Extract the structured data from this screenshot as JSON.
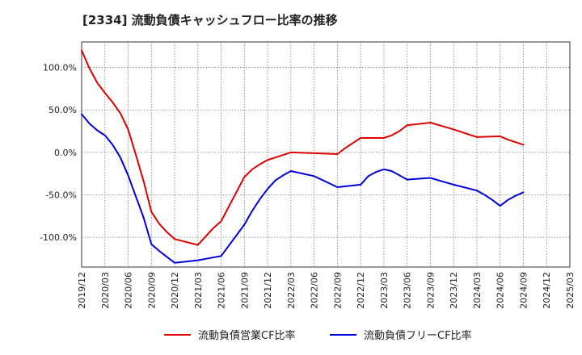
{
  "chart_data": {
    "type": "line",
    "title": "[2334]  流動負債キャッシュフロー比率の推移",
    "xlabel": "",
    "ylabel": "",
    "ylim": [
      -135,
      130
    ],
    "yticks": [
      100,
      50,
      0,
      -50,
      -100
    ],
    "ytick_labels": [
      "100.0%",
      "50.0%",
      "0.0%",
      "-50.0%",
      "-100.0%"
    ],
    "xticks": [
      "2019/12",
      "2020/03",
      "2020/06",
      "2020/09",
      "2020/12",
      "2021/03",
      "2021/06",
      "2021/09",
      "2021/12",
      "2022/03",
      "2022/06",
      "2022/09",
      "2022/12",
      "2023/03",
      "2023/06",
      "2023/09",
      "2023/12",
      "2024/03",
      "2024/06",
      "2024/09",
      "2024/12",
      "2025/03"
    ],
    "grid": true,
    "legend_position": "bottom",
    "series": [
      {
        "name": "流動負債営業CF比率",
        "color": "#e00000",
        "points": [
          [
            "2019/12",
            120
          ],
          [
            "2020/01",
            99
          ],
          [
            "2020/02",
            82
          ],
          [
            "2020/03",
            70
          ],
          [
            "2020/04",
            59
          ],
          [
            "2020/05",
            46
          ],
          [
            "2020/06",
            27
          ],
          [
            "2020/07",
            -3
          ],
          [
            "2020/08",
            -34
          ],
          [
            "2020/09",
            -70
          ],
          [
            "2020/10",
            -84
          ],
          [
            "2020/11",
            -94
          ],
          [
            "2020/12",
            -102
          ],
          [
            "2021/03",
            -109
          ],
          [
            "2021/04",
            -99
          ],
          [
            "2021/05",
            -89
          ],
          [
            "2021/06",
            -81
          ],
          [
            "2021/09",
            -29
          ],
          [
            "2021/10",
            -20
          ],
          [
            "2021/11",
            -14
          ],
          [
            "2021/12",
            -9
          ],
          [
            "2022/03",
            0
          ],
          [
            "2022/06",
            -1
          ],
          [
            "2022/09",
            -2
          ],
          [
            "2022/10",
            5
          ],
          [
            "2022/12",
            17
          ],
          [
            "2023/03",
            17
          ],
          [
            "2023/04",
            20
          ],
          [
            "2023/05",
            25
          ],
          [
            "2023/06",
            32
          ],
          [
            "2023/09",
            35
          ],
          [
            "2023/12",
            27
          ],
          [
            "2024/03",
            18
          ],
          [
            "2024/06",
            19
          ],
          [
            "2024/07",
            15
          ],
          [
            "2024/08",
            12
          ],
          [
            "2024/09",
            9
          ]
        ]
      },
      {
        "name": "流動負債フリーCF比率",
        "color": "#0000dd",
        "points": [
          [
            "2019/12",
            45
          ],
          [
            "2020/01",
            34
          ],
          [
            "2020/02",
            26
          ],
          [
            "2020/03",
            20
          ],
          [
            "2020/04",
            9
          ],
          [
            "2020/05",
            -6
          ],
          [
            "2020/06",
            -27
          ],
          [
            "2020/07",
            -52
          ],
          [
            "2020/08",
            -77
          ],
          [
            "2020/09",
            -108
          ],
          [
            "2020/10",
            -116
          ],
          [
            "2020/11",
            -123
          ],
          [
            "2020/12",
            -130
          ],
          [
            "2021/03",
            -127
          ],
          [
            "2021/06",
            -122
          ],
          [
            "2021/09",
            -85
          ],
          [
            "2021/10",
            -69
          ],
          [
            "2021/11",
            -55
          ],
          [
            "2021/12",
            -43
          ],
          [
            "2022/01",
            -33
          ],
          [
            "2022/02",
            -27
          ],
          [
            "2022/03",
            -22
          ],
          [
            "2022/06",
            -28
          ],
          [
            "2022/09",
            -41
          ],
          [
            "2022/12",
            -38
          ],
          [
            "2023/01",
            -28
          ],
          [
            "2023/02",
            -23
          ],
          [
            "2023/03",
            -20
          ],
          [
            "2023/04",
            -22
          ],
          [
            "2023/05",
            -27
          ],
          [
            "2023/06",
            -32
          ],
          [
            "2023/09",
            -30
          ],
          [
            "2023/12",
            -38
          ],
          [
            "2024/03",
            -45
          ],
          [
            "2024/04",
            -50
          ],
          [
            "2024/05",
            -56
          ],
          [
            "2024/06",
            -63
          ],
          [
            "2024/07",
            -56
          ],
          [
            "2024/08",
            -51
          ],
          [
            "2024/09",
            -47
          ]
        ]
      }
    ]
  }
}
